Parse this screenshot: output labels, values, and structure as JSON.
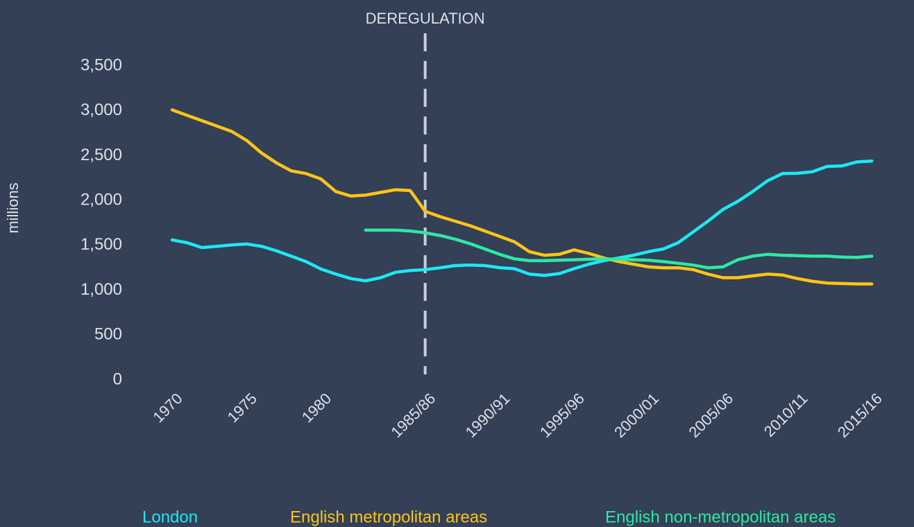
{
  "chart_data": {
    "type": "line",
    "y_label": "millions",
    "annotation": {
      "label": "DEREGULATION",
      "at": "1985/86"
    },
    "categories": [
      "1970",
      null,
      null,
      null,
      null,
      "1975",
      null,
      null,
      null,
      null,
      "1980",
      null,
      null,
      null,
      null,
      null,
      null,
      "1985/86",
      null,
      null,
      null,
      null,
      "1990/91",
      null,
      null,
      null,
      null,
      "1995/96",
      null,
      null,
      null,
      null,
      "2000/01",
      null,
      null,
      null,
      null,
      "2005/06",
      null,
      null,
      null,
      null,
      "2010/11",
      null,
      null,
      null,
      null,
      "2015/16"
    ],
    "ylim": [
      0,
      3500
    ],
    "yticks": [
      0,
      500,
      {
        "value": 1000,
        "label": "1,000"
      },
      {
        "value": 1500,
        "label": "1,500"
      },
      {
        "value": 2000,
        "label": "2,000"
      },
      {
        "value": 2500,
        "label": "2,500"
      },
      {
        "value": 3000,
        "label": "3,000"
      },
      {
        "value": 3500,
        "label": "3,500"
      }
    ],
    "grid": false,
    "legend": "bottom",
    "series": [
      {
        "name": "London",
        "color": "#1ee8f2",
        "values": [
          1561,
          1530,
          1476,
          1490,
          1505,
          1515,
          1490,
          1440,
          1380,
          1320,
          1236,
          1180,
          1130,
          1105,
          1140,
          1200,
          1220,
          1229,
          1250,
          1275,
          1280,
          1275,
          1252,
          1240,
          1180,
          1165,
          1185,
          1240,
          1290,
          1330,
          1360,
          1390,
          1430,
          1460,
          1530,
          1650,
          1770,
          1900,
          1990,
          2100,
          2220,
          2300,
          2303,
          2320,
          2380,
          2385,
          2430,
          2440
        ]
      },
      {
        "name": "English metropolitan areas",
        "color": "#fcc419",
        "values": [
          3010,
          2950,
          2890,
          2830,
          2770,
          2670,
          2530,
          2420,
          2330,
          2300,
          2240,
          2100,
          2050,
          2060,
          2090,
          2120,
          2110,
          1880,
          1820,
          1770,
          1720,
          1660,
          1600,
          1540,
          1430,
          1390,
          1400,
          1450,
          1410,
          1360,
          1320,
          1290,
          1260,
          1250,
          1250,
          1230,
          1180,
          1140,
          1140,
          1160,
          1180,
          1170,
          1130,
          1100,
          1080,
          1075,
          1070,
          1070
        ]
      },
      {
        "name": "English non-metropolitan areas",
        "color": "#2ee8a5",
        "values": [
          null,
          null,
          null,
          null,
          null,
          null,
          null,
          null,
          null,
          null,
          null,
          null,
          null,
          1670,
          1670,
          1670,
          1660,
          1640,
          1610,
          1570,
          1520,
          1460,
          1400,
          1350,
          1330,
          1330,
          1335,
          1340,
          1345,
          1350,
          1345,
          1340,
          1335,
          1320,
          1300,
          1280,
          1250,
          1260,
          1340,
          1380,
          1400,
          1390,
          1385,
          1380,
          1380,
          1370,
          1365,
          1380
        ]
      }
    ]
  }
}
